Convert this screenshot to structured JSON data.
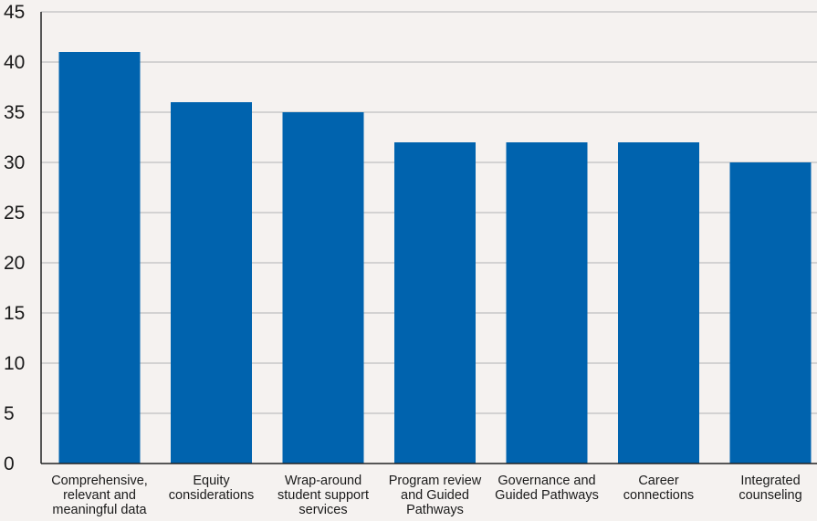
{
  "chart_data": {
    "type": "bar",
    "title": "",
    "xlabel": "",
    "ylabel": "",
    "categories": [
      [
        "Comprehensive,",
        "relevant and",
        "meaningful data"
      ],
      [
        "Equity",
        "considerations"
      ],
      [
        "Wrap-around",
        "student support",
        "services"
      ],
      [
        "Program review",
        "and Guided",
        "Pathways"
      ],
      [
        "Governance and",
        "Guided Pathways"
      ],
      [
        "Career",
        "connections"
      ],
      [
        "Integrated",
        "counseling"
      ]
    ],
    "values": [
      41,
      36,
      35,
      32,
      32,
      32,
      30
    ],
    "ylim": [
      0,
      45
    ],
    "yticks": [
      0,
      5,
      10,
      15,
      20,
      25,
      30,
      35,
      40,
      45
    ],
    "grid": true,
    "legend": "none",
    "colors": {
      "bar": "#0063ae",
      "grid": "#c8c8c8",
      "axis": "#222222",
      "background": "#f5f2f0"
    }
  }
}
